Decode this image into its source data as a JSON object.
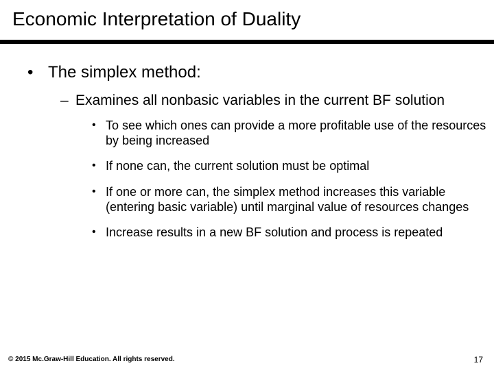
{
  "title": "Economic Interpretation of Duality",
  "bullet1": "The simplex method:",
  "sub1": "Examines all nonbasic variables in the current BF solution",
  "sub1a": "To see which ones can provide a more profitable use of the resources by being increased",
  "sub1b": "If none can, the current solution must be optimal",
  "sub1c": "If one or more can, the simplex method increases this variable (entering basic variable) until marginal value of resources changes",
  "sub1d": "Increase results in a new BF solution and process is repeated",
  "copyright": "© 2015 Mc.Graw-Hill Education. All rights reserved.",
  "pageNumber": "17"
}
